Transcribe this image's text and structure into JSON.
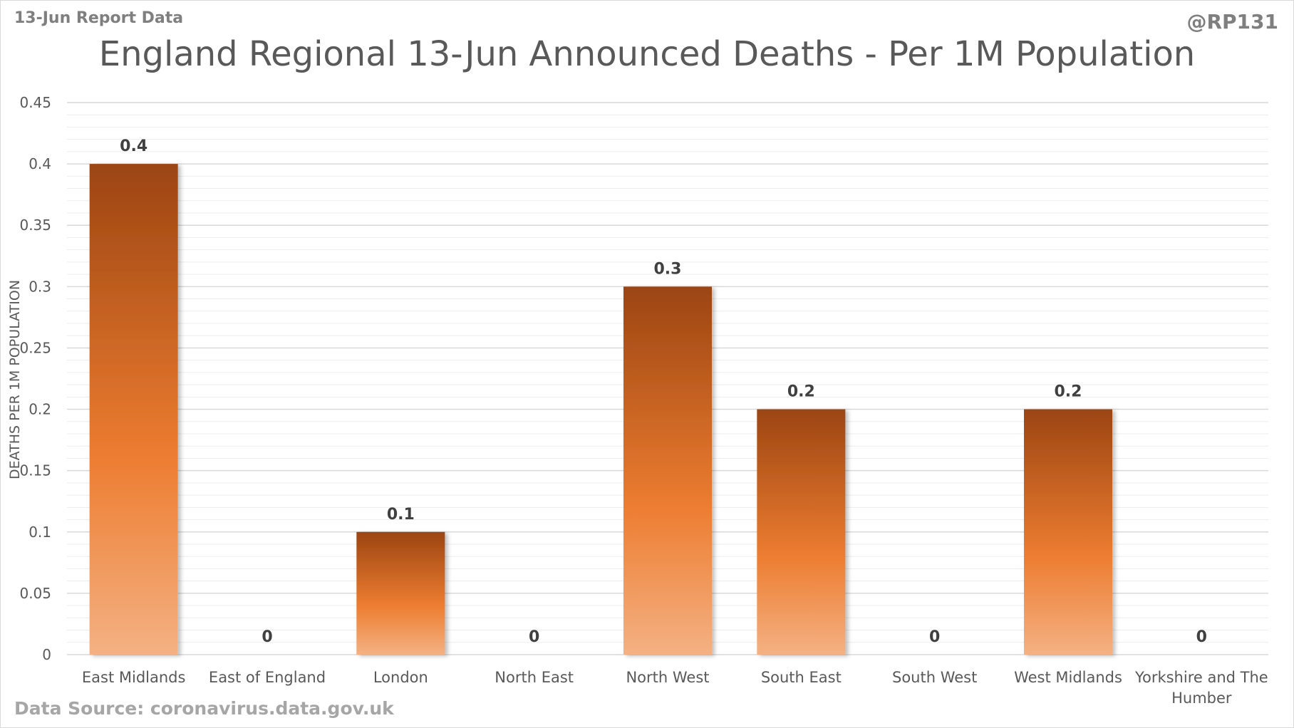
{
  "header": {
    "report_label": "13-Jun Report Data",
    "handle": "@RP131"
  },
  "footer": {
    "source": "Data Source: coronavirus.data.gov.uk"
  },
  "colors": {
    "bar_top": "#9c4512",
    "bar_mid": "#ed7d31",
    "bar_bottom": "#f4b183",
    "grid_major": "#d9d9d9",
    "grid_minor": "#ededed"
  },
  "chart_data": {
    "type": "bar",
    "title": "England Regional 13-Jun Announced Deaths - Per 1M Population",
    "xlabel": "",
    "ylabel": "DEATHS PER 1M POPULATION",
    "ylim": [
      0,
      0.45
    ],
    "grid": true,
    "y_ticks": [
      "0",
      "0.05",
      "0.1",
      "0.15",
      "0.2",
      "0.25",
      "0.3",
      "0.35",
      "0.4",
      "0.45"
    ],
    "categories": [
      "East Midlands",
      "East of England",
      "London",
      "North East",
      "North West",
      "South East",
      "South West",
      "West Midlands",
      "Yorkshire and The Humber"
    ],
    "values": [
      0.4,
      0,
      0.1,
      0,
      0.3,
      0.2,
      0,
      0.2,
      0
    ],
    "data_labels": [
      "0.4",
      "0",
      "0.1",
      "0",
      "0.3",
      "0.2",
      "0",
      "0.2",
      "0"
    ]
  }
}
